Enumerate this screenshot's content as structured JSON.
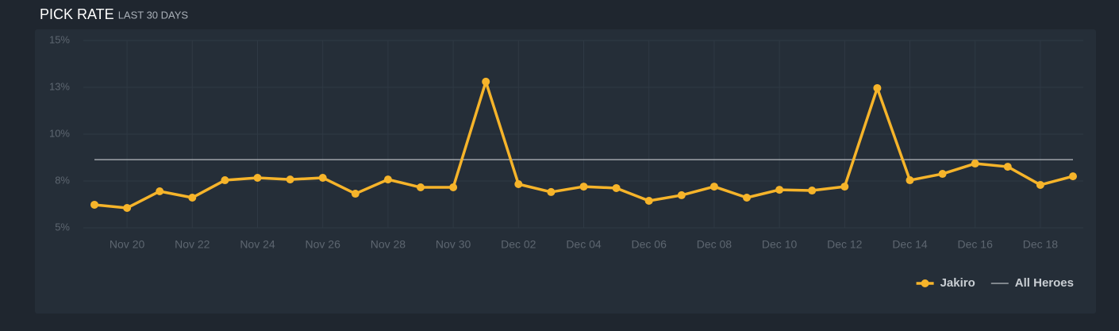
{
  "chart_data": {
    "type": "line",
    "title": "PICK RATE",
    "subtitle": "LAST 30 DAYS",
    "categories": [
      null,
      "Nov 20",
      null,
      "Nov 22",
      null,
      "Nov 24",
      null,
      "Nov 26",
      null,
      "Nov 28",
      null,
      "Nov 30",
      null,
      "Dec 02",
      null,
      "Dec 04",
      null,
      "Dec 06",
      null,
      "Dec 08",
      null,
      "Dec 10",
      null,
      "Dec 12",
      null,
      "Dec 14",
      null,
      "Dec 16",
      null,
      "Dec 18",
      null
    ],
    "series": [
      {
        "name": "Jakiro",
        "color": "#f6b42a",
        "values": [
          6.23,
          6.06,
          6.95,
          6.61,
          7.54,
          7.67,
          7.58,
          7.67,
          6.82,
          7.58,
          7.16,
          7.16,
          12.8,
          7.33,
          6.91,
          7.2,
          7.12,
          6.44,
          6.74,
          7.2,
          6.61,
          7.03,
          6.99,
          7.2,
          12.46,
          7.54,
          7.88,
          8.43,
          8.26,
          7.29,
          7.75
        ]
      },
      {
        "name": "All Heroes",
        "color": "#b8bcc0",
        "values": [
          8.64,
          8.64,
          8.64,
          8.64,
          8.64,
          8.64,
          8.64,
          8.64,
          8.64,
          8.64,
          8.64,
          8.64,
          8.64,
          8.64,
          8.64,
          8.64,
          8.64,
          8.64,
          8.64,
          8.64,
          8.64,
          8.64,
          8.64,
          8.64,
          8.64,
          8.64,
          8.64,
          8.64,
          8.64,
          8.64,
          8.64
        ]
      }
    ],
    "ylim": [
      5,
      15
    ],
    "yticks": [
      {
        "value": 5,
        "label": "5%"
      },
      {
        "value": 7.5,
        "label": "8%"
      },
      {
        "value": 10,
        "label": "10%"
      },
      {
        "value": 12.5,
        "label": "13%"
      },
      {
        "value": 15,
        "label": "15%"
      }
    ],
    "grid": true,
    "legend": "bottom-right"
  }
}
